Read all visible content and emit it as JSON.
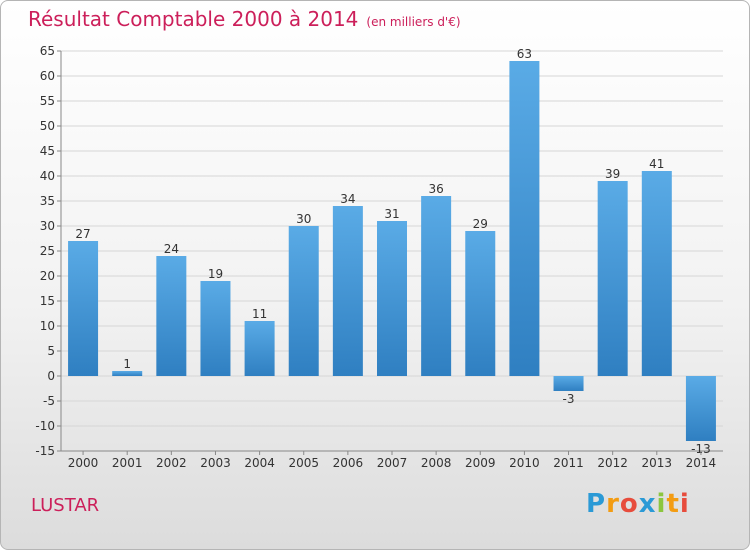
{
  "header": {
    "title": "Résultat Comptable 2000 à 2014",
    "subtitle": "(en milliers d'€)"
  },
  "footer": {
    "commune": "LUSTAR",
    "logo": {
      "letters": [
        "P",
        "r",
        "o",
        "x",
        "i",
        "t",
        "i"
      ],
      "colors": [
        "#2b9ad6",
        "#f39c12",
        "#e74c3c",
        "#2b9ad6",
        "#8cc63f",
        "#f39c12",
        "#e74c3c"
      ]
    }
  },
  "colors": {
    "bar_light": "#5aabe6",
    "bar_dark": "#2f7fc1",
    "title": "#cc1f5a"
  },
  "chart_data": {
    "type": "bar",
    "title": "Résultat Comptable 2000 à 2014",
    "subtitle": "(en milliers d'€)",
    "xlabel": "",
    "ylabel": "",
    "categories": [
      "2000",
      "2001",
      "2002",
      "2003",
      "2004",
      "2005",
      "2006",
      "2007",
      "2008",
      "2009",
      "2010",
      "2011",
      "2012",
      "2013",
      "2014"
    ],
    "values": [
      27,
      1,
      24,
      19,
      11,
      30,
      34,
      31,
      36,
      29,
      63,
      -3,
      39,
      41,
      -13
    ],
    "ylim": [
      -15,
      65
    ],
    "yticks": [
      65,
      60,
      55,
      50,
      45,
      40,
      35,
      30,
      25,
      20,
      15,
      10,
      5,
      0,
      -5,
      -10,
      -15
    ],
    "grid": true
  }
}
